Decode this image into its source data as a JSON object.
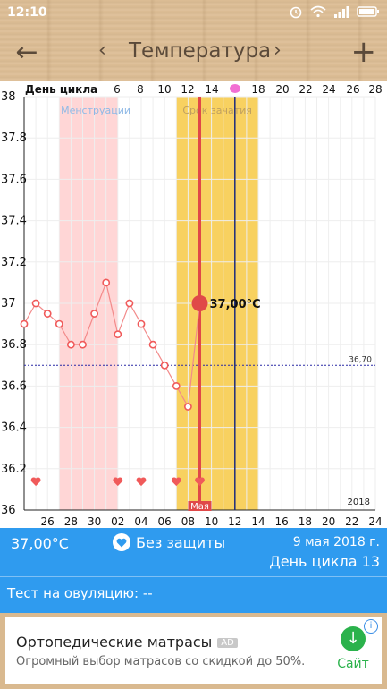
{
  "status_bar": {
    "time": "12:10"
  },
  "toolbar": {
    "back": "←",
    "prev": "‹",
    "title": "Температура",
    "next": "›",
    "add": "+"
  },
  "chart_data": {
    "type": "line",
    "title": "",
    "ylim": [
      36,
      38
    ],
    "y_ticks": [
      "38",
      "37.8",
      "37.6",
      "37.4",
      "37.2",
      "37",
      "36.8",
      "36.6",
      "36.4",
      "36.2",
      "36"
    ],
    "top_axis_label": "День цикла",
    "top_axis_ticks": [
      "6",
      "8",
      "10",
      "12",
      "14",
      "18",
      "20",
      "22",
      "24",
      "26",
      "28"
    ],
    "bottom_axis_ticks": [
      "26",
      "28",
      "30",
      "02",
      "04",
      "06",
      "08",
      "10",
      "12",
      "14",
      "16",
      "18",
      "20",
      "22",
      "24"
    ],
    "month_label": "Мая",
    "year_label": "2018",
    "cover_line": {
      "value": 36.7,
      "label": "36,70"
    },
    "menstruation_label": "Менструации",
    "conception_label": "Срок зачатия",
    "selected_point": {
      "label": "37,00°C",
      "value": 37.0
    },
    "series": [
      {
        "points": [
          {
            "x": 24,
            "y": 36.9
          },
          {
            "x": 25,
            "y": 37.0
          },
          {
            "x": 26,
            "y": 36.95
          },
          {
            "x": 27,
            "y": 36.9
          },
          {
            "x": 28,
            "y": 36.8
          },
          {
            "x": 29,
            "y": 36.8
          },
          {
            "x": 30,
            "y": 36.95
          },
          {
            "x": 31,
            "y": 37.1
          },
          {
            "x": 32,
            "y": 36.85
          },
          {
            "x": 33,
            "y": 37.0
          },
          {
            "x": 34,
            "y": 36.9
          },
          {
            "x": 35,
            "y": 36.8
          },
          {
            "x": 36,
            "y": 36.7
          },
          {
            "x": 37,
            "y": 36.6
          },
          {
            "x": 38,
            "y": 36.5
          },
          {
            "x": 39,
            "y": 37.0
          }
        ]
      }
    ],
    "hearts_at": [
      25,
      32,
      34,
      37,
      39
    ]
  },
  "info_bar": {
    "temperature": "37,00°C",
    "protection": "Без защиты",
    "date": "9 мая 2018 г.",
    "cycle_day": "День цикла 13"
  },
  "test": {
    "label": "Тест на овуляцию: --"
  },
  "ad": {
    "title": "Ортопедические матрасы",
    "badge": "AD",
    "description": "Огромный выбор матрасов со скидкой до 50%.",
    "cta": "Сайт"
  }
}
